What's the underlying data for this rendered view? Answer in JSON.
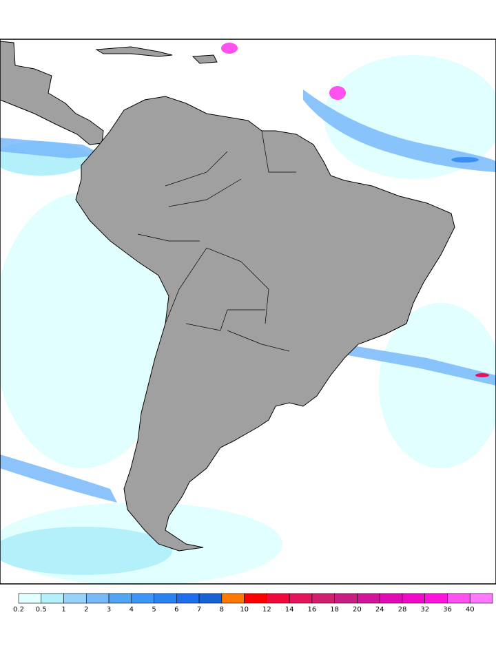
{
  "colorbar": {
    "levels": [
      0.2,
      0.5,
      1,
      2,
      3,
      4,
      5,
      6,
      7,
      8,
      10,
      12,
      14,
      16,
      18,
      20,
      24,
      28,
      32,
      36,
      40
    ],
    "colors": [
      "#e1ffff",
      "#b4f0fa",
      "#96d2fa",
      "#78b9fa",
      "#50a5f5",
      "#3c96f5",
      "#2882f0",
      "#1e6eeb",
      "#1464d2",
      "#ff7800",
      "#ff0000",
      "#f00a3c",
      "#e6145a",
      "#d21e6e",
      "#c81e82",
      "#d2149b",
      "#e10ab4",
      "#f00ac8",
      "#ff14dc",
      "#ff50f0",
      "#ff78ff"
    ]
  }
}
